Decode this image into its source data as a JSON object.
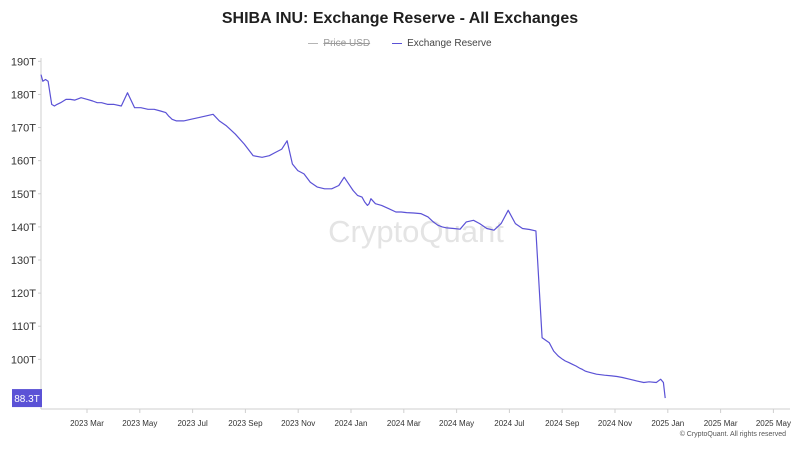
{
  "chart_data": {
    "type": "line",
    "title": "SHIBA INU: Exchange Reserve - All Exchanges",
    "legend": [
      {
        "name": "Price USD",
        "color": "#b5b5b5",
        "visible": false
      },
      {
        "name": "Exchange Reserve",
        "color": "#5b52d6",
        "visible": true
      }
    ],
    "xlabel": "",
    "ylabel": "",
    "x_ticks": [
      "2023 Mar",
      "2023 May",
      "2023 Jul",
      "2023 Sep",
      "2023 Nov",
      "2024 Jan",
      "2024 Mar",
      "2024 May",
      "2024 Jul",
      "2024 Sep",
      "2024 Nov",
      "2025 Jan",
      "2025 Mar",
      "2025 May"
    ],
    "y_ticks": [
      "190T",
      "180T",
      "170T",
      "160T",
      "150T",
      "140T",
      "130T",
      "120T",
      "110T",
      "100T"
    ],
    "y_tick_values": [
      190,
      180,
      170,
      160,
      150,
      140,
      130,
      120,
      110,
      100
    ],
    "ylim": [
      85,
      191
    ],
    "xlim": [
      0,
      840
    ],
    "last_value": 88.3,
    "last_value_label": "88.3T",
    "watermark": "CryptoQuant",
    "copyright": "© CryptoQuant. All rights reserved",
    "series": [
      {
        "name": "Exchange Reserve",
        "unit": "T",
        "x_days": [
          0,
          2,
          5,
          8,
          12,
          15,
          18,
          22,
          28,
          33,
          38,
          45,
          52,
          58,
          63,
          68,
          75,
          82,
          90,
          97,
          105,
          112,
          120,
          127,
          134,
          140,
          143,
          145,
          147,
          152,
          160,
          168,
          177,
          185,
          193,
          200,
          208,
          218,
          228,
          238,
          248,
          256,
          263,
          270,
          276,
          282,
          288,
          295,
          302,
          310,
          318,
          326,
          334,
          340,
          345,
          350,
          355,
          360,
          363,
          366,
          368,
          370,
          375,
          382,
          390,
          398,
          404,
          410,
          418,
          426,
          434,
          440,
          445,
          450,
          455,
          463,
          470,
          477,
          485,
          492,
          500,
          508,
          516,
          524,
          532,
          540,
          548,
          555,
          562,
          570,
          575,
          580,
          585,
          588,
          592,
          596,
          600,
          603,
          605,
          607,
          608,
          610,
          612,
          616,
          623,
          632,
          640,
          646,
          652,
          660,
          668,
          676,
          682,
          690,
          695,
          698,
          700
        ],
        "values": [
          186.0,
          184.0,
          184.5,
          184.0,
          177.0,
          176.5,
          177.0,
          177.5,
          178.5,
          178.5,
          178.3,
          179.0,
          178.5,
          178.0,
          177.5,
          177.5,
          177.0,
          177.0,
          176.5,
          180.5,
          176.0,
          176.0,
          175.5,
          175.5,
          175.0,
          174.5,
          173.5,
          173.0,
          172.5,
          172.0,
          172.0,
          172.5,
          173.0,
          173.5,
          174.0,
          172.0,
          170.5,
          168.0,
          165.0,
          161.5,
          161.0,
          161.5,
          162.5,
          163.5,
          166.0,
          159.0,
          157.0,
          156.0,
          153.5,
          152.0,
          151.5,
          151.5,
          152.5,
          155.0,
          153.0,
          151.0,
          149.5,
          149.0,
          147.5,
          146.5,
          147.0,
          148.5,
          147.0,
          146.5,
          145.5,
          144.5,
          144.5,
          144.3,
          144.2,
          144.0,
          143.0,
          141.5,
          140.5,
          140.0,
          139.7,
          139.5,
          139.3,
          141.5,
          142.0,
          141.0,
          139.5,
          139.0,
          141.0,
          145.0,
          141.0,
          139.5,
          139.2,
          138.8,
          106.5,
          105.0,
          102.5,
          101.0,
          100.0,
          99.5,
          99.0,
          98.5,
          98.0,
          97.5,
          97.2,
          97.0,
          96.8,
          96.5,
          96.3,
          96.0,
          95.5,
          95.2,
          95.0,
          94.8,
          94.5,
          94.0,
          93.5,
          93.0,
          93.2,
          93.0,
          94.0,
          93.0,
          88.3
        ]
      }
    ]
  }
}
